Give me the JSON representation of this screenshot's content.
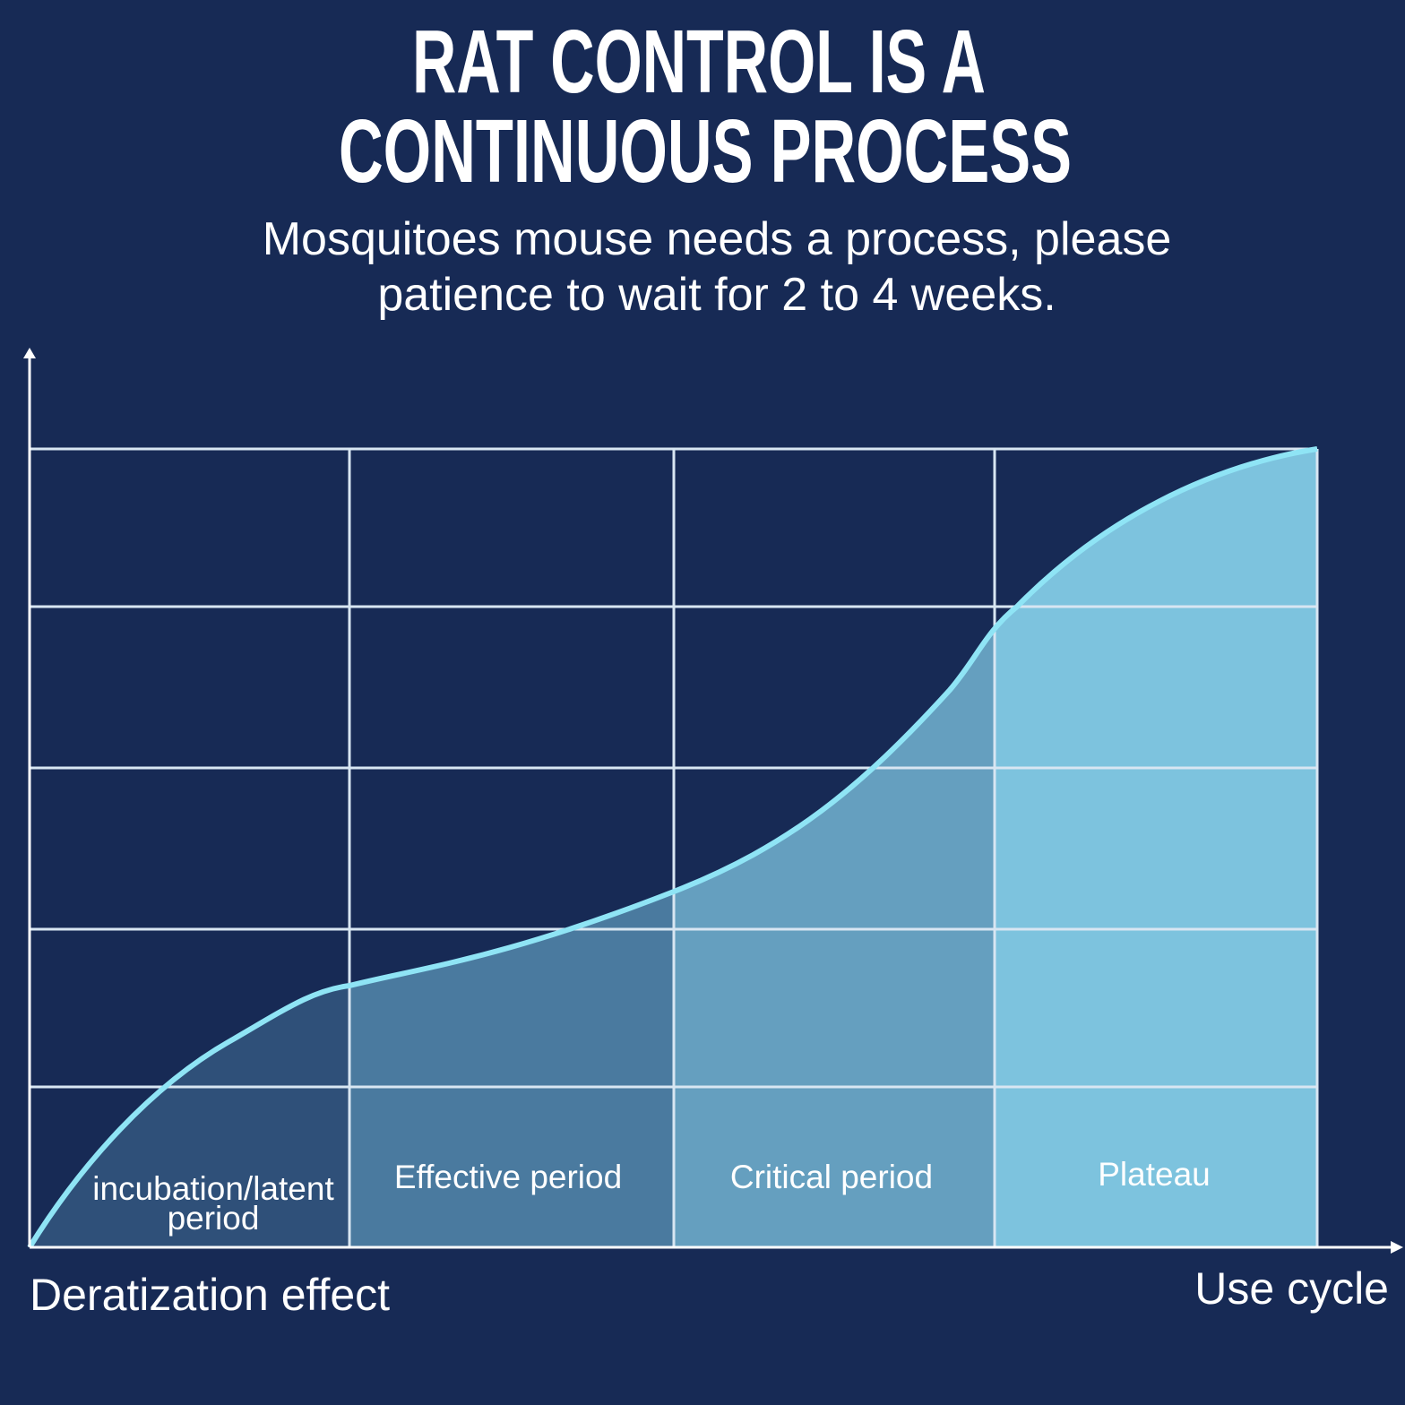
{
  "header": {
    "title": [
      "RAT CONTROL IS A",
      "CONTINUOUS PROCESS"
    ],
    "subtitle": [
      "Mosquitoes mouse needs a process, please",
      "patience to wait for 2 to 4 weeks."
    ]
  },
  "phases": [
    [
      "incubation/latent",
      "period"
    ],
    [
      "Effective period"
    ],
    [
      "Critical period"
    ],
    [
      "Plateau"
    ]
  ],
  "axes": {
    "y_label": "Deratization effect",
    "x_label": "Use cycle"
  }
}
